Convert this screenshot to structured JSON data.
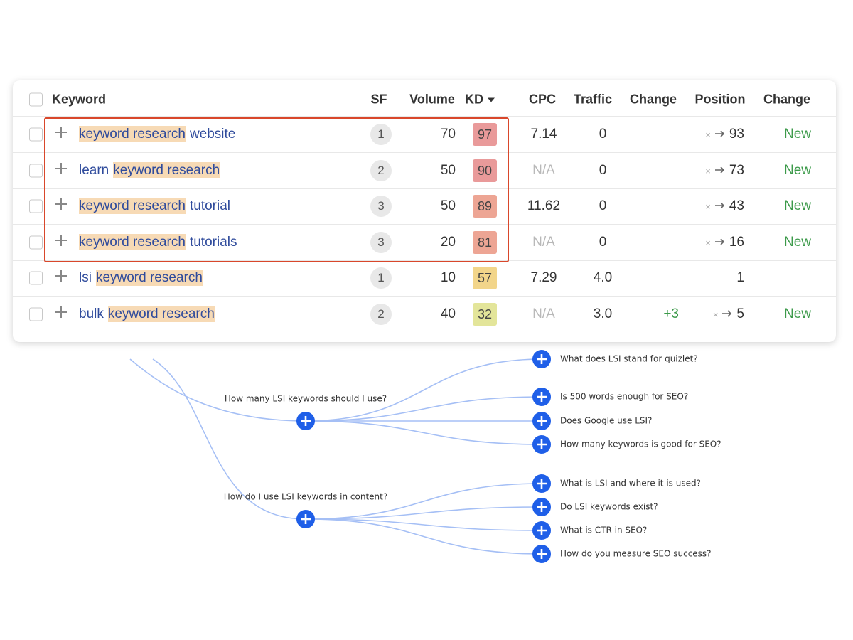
{
  "table": {
    "columns": [
      "Keyword",
      "SF",
      "Volume",
      "KD",
      "CPC",
      "Traffic",
      "Change",
      "Position",
      "Change"
    ],
    "rows": [
      {
        "keyword": [
          {
            "text": "keyword research",
            "highlight": true
          },
          {
            "text": "website"
          }
        ],
        "sf": 1,
        "volume": 70,
        "kd": 97,
        "kd_color": "#e99a9a",
        "cpc": "7.14",
        "traffic": "0",
        "change": null,
        "position": {
          "from": "×",
          "to": 93
        },
        "change2": "New",
        "selected": true
      },
      {
        "keyword": [
          {
            "text": "learn"
          },
          {
            "text": "keyword research",
            "highlight": true
          }
        ],
        "sf": 2,
        "volume": 50,
        "kd": 90,
        "kd_color": "#e99a9a",
        "cpc": "N/A",
        "cpc_color": "#b9b9b9",
        "traffic": "0",
        "change": null,
        "position": {
          "from": "×",
          "to": 73
        },
        "change2": "New",
        "selected": true
      },
      {
        "keyword": [
          {
            "text": "keyword research",
            "highlight": true
          },
          {
            "text": "tutorial"
          }
        ],
        "sf": 3,
        "volume": 50,
        "kd": 89,
        "kd_color": "#eda594",
        "cpc": "11.62",
        "traffic": "0",
        "change": null,
        "position": {
          "from": "×",
          "to": 43
        },
        "change2": "New",
        "selected": true
      },
      {
        "keyword": [
          {
            "text": "keyword research",
            "highlight": true
          },
          {
            "text": "tutorials"
          }
        ],
        "sf": 3,
        "volume": 20,
        "kd": 81,
        "kd_color": "#eda594",
        "cpc": "N/A",
        "cpc_color": "#b9b9b9",
        "traffic": "0",
        "change": null,
        "position": {
          "from": "×",
          "to": 16
        },
        "change2": "New",
        "selected": true
      },
      {
        "keyword": [
          {
            "text": "lsi"
          },
          {
            "text": "keyword research",
            "highlight": true
          }
        ],
        "sf": 1,
        "volume": 10,
        "kd": 57,
        "kd_color": "#f2d58a",
        "cpc": "7.29",
        "traffic": "4.0",
        "change": null,
        "position": {
          "to": 1
        },
        "change2": null,
        "selected": false
      },
      {
        "keyword": [
          {
            "text": "bulk"
          },
          {
            "text": "keyword research",
            "highlight": true
          }
        ],
        "sf": 2,
        "volume": 40,
        "kd": 32,
        "kd_color": "#e3e59a",
        "cpc": "N/A",
        "cpc_color": "#b9b9b9",
        "traffic": "3.0",
        "change": "+3",
        "position": {
          "from": "×",
          "to": 5
        },
        "change2": "New",
        "selected": false
      }
    ]
  },
  "mindmap": {
    "top_leaf": "What does LSI stand for quizlet?",
    "branches": [
      {
        "label": "How many LSI keywords should I use?",
        "children": [
          "Is 500 words enough for SEO?",
          "Does Google use LSI?",
          "How many keywords is good for SEO?"
        ]
      },
      {
        "label": "How do I use LSI keywords in content?",
        "children": [
          "What is LSI and where it is used?",
          "Do LSI keywords exist?",
          "What is CTR in SEO?",
          "How do you measure SEO success?"
        ]
      }
    ]
  }
}
